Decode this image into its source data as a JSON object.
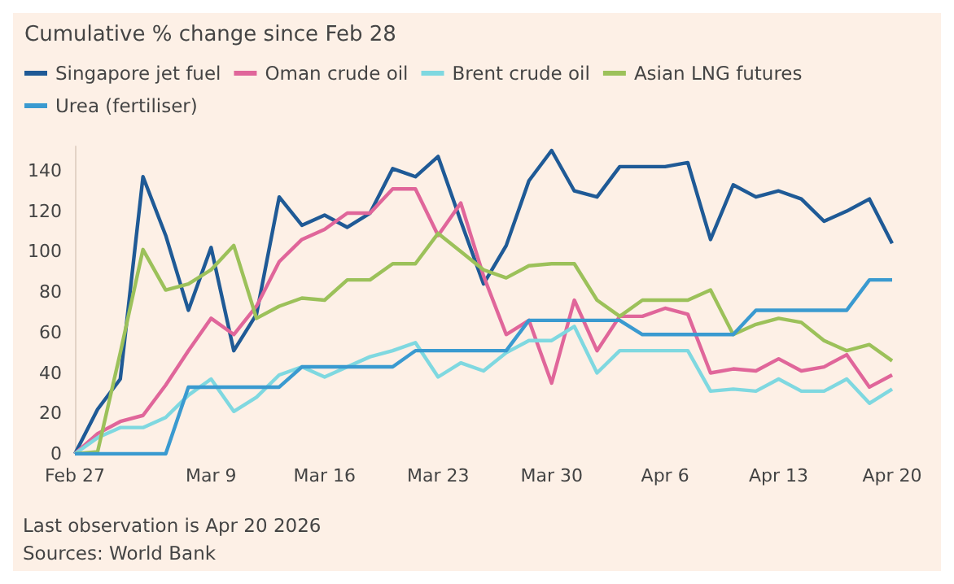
{
  "chart_data": {
    "type": "line",
    "title": "Cumulative % change since Feb 28",
    "categories": [
      "Feb 27",
      null,
      null,
      null,
      null,
      null,
      "Mar 9",
      null,
      null,
      null,
      null,
      "Mar 16",
      null,
      null,
      null,
      null,
      "Mar 23",
      null,
      null,
      null,
      null,
      "Mar 30",
      null,
      null,
      null,
      null,
      "Apr 6",
      null,
      null,
      null,
      null,
      "Apr 13",
      null,
      null,
      null,
      null,
      "Apr 20"
    ],
    "series": [
      {
        "name": "Singapore jet fuel",
        "color": "#1f5a96",
        "values": [
          0,
          22,
          37,
          137,
          108,
          71,
          102,
          51,
          69,
          127,
          113,
          118,
          112,
          119,
          141,
          137,
          147,
          115,
          84,
          103,
          135,
          150,
          130,
          127,
          142,
          142,
          142,
          144,
          106,
          133,
          127,
          130,
          126,
          115,
          120,
          126,
          104
        ]
      },
      {
        "name": "Oman crude oil",
        "color": "#e0669a",
        "values": [
          0,
          10,
          16,
          19,
          34,
          51,
          67,
          59,
          73,
          95,
          106,
          111,
          119,
          119,
          131,
          131,
          108,
          124,
          88,
          59,
          66,
          35,
          76,
          51,
          68,
          68,
          72,
          69,
          40,
          42,
          41,
          47,
          41,
          43,
          49,
          33,
          39
        ]
      },
      {
        "name": "Brent crude oil",
        "color": "#7fd8e0",
        "values": [
          0,
          8,
          13,
          13,
          18,
          29,
          37,
          21,
          28,
          39,
          43,
          38,
          43,
          48,
          51,
          55,
          38,
          45,
          41,
          50,
          56,
          56,
          63,
          40,
          51,
          51,
          51,
          51,
          31,
          32,
          31,
          37,
          31,
          31,
          37,
          25,
          32
        ]
      },
      {
        "name": "Asian LNG futures",
        "color": "#9cc15a",
        "values": [
          0,
          1,
          50,
          101,
          81,
          84,
          91,
          103,
          67,
          73,
          77,
          76,
          86,
          86,
          94,
          94,
          109,
          100,
          91,
          87,
          93,
          94,
          94,
          76,
          68,
          76,
          76,
          76,
          81,
          59,
          64,
          67,
          65,
          56,
          51,
          54,
          46
        ]
      },
      {
        "name": "Urea (fertiliser)",
        "color": "#3a9ad0",
        "values": [
          0,
          0,
          0,
          0,
          0,
          33,
          33,
          33,
          33,
          33,
          43,
          43,
          43,
          43,
          43,
          51,
          51,
          51,
          51,
          51,
          66,
          66,
          66,
          66,
          66,
          59,
          59,
          59,
          59,
          59,
          71,
          71,
          71,
          71,
          71,
          86,
          86
        ]
      }
    ],
    "ylim": [
      0,
      152
    ],
    "yticks": [
      0,
      20,
      40,
      60,
      80,
      100,
      120,
      140
    ],
    "grid": false,
    "legend": "top left",
    "marker": "none",
    "line_style": "solid",
    "annotations": [
      "Last observation is Apr 20 2026",
      "Sources: World Bank"
    ]
  }
}
